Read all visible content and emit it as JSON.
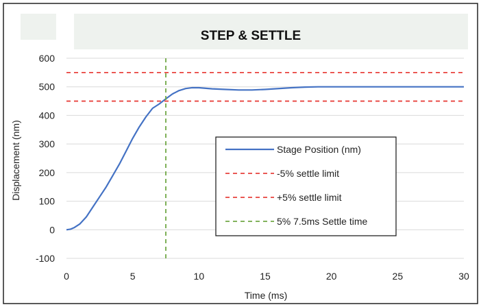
{
  "chart_data": {
    "type": "line",
    "title": "STEP & SETTLE",
    "xlabel": "Time (ms)",
    "ylabel": "Displacement (nm)",
    "xlim": [
      0,
      30
    ],
    "ylim": [
      -100,
      600
    ],
    "xticks": [
      0,
      5,
      10,
      15,
      20,
      25,
      30
    ],
    "yticks": [
      -100,
      0,
      100,
      200,
      300,
      400,
      500,
      600
    ],
    "grid": "horizontal",
    "legend_position": "center-right",
    "series": [
      {
        "name": "Stage Position (nm)",
        "style": "solid",
        "color": "#4472c4",
        "x": [
          0,
          0.3,
          0.6,
          1,
          1.5,
          2,
          2.5,
          3,
          3.5,
          4,
          4.5,
          5,
          5.5,
          6,
          6.5,
          7,
          7.5,
          8,
          8.5,
          9,
          9.5,
          10,
          11,
          12,
          13,
          14,
          15,
          16,
          17,
          18,
          19,
          20,
          22,
          25,
          28,
          30
        ],
        "y": [
          0,
          2,
          8,
          20,
          45,
          80,
          115,
          150,
          190,
          230,
          275,
          320,
          360,
          395,
          425,
          440,
          458,
          475,
          487,
          494,
          497,
          497,
          493,
          491,
          489,
          489,
          491,
          494,
          497,
          499,
          500,
          500,
          500,
          500,
          500,
          500
        ]
      },
      {
        "name": "-5% settle limit",
        "style": "dashed",
        "color": "#e8413c",
        "x": [
          0,
          30
        ],
        "y": [
          450,
          450
        ]
      },
      {
        "name": "+5% settle limit",
        "style": "dashed",
        "color": "#e8413c",
        "x": [
          0,
          30
        ],
        "y": [
          550,
          550
        ]
      },
      {
        "name": "5% 7.5ms Settle time",
        "style": "dashed",
        "color": "#70a845",
        "x": [
          7.5,
          7.5
        ],
        "y": [
          -100,
          600
        ]
      }
    ]
  }
}
